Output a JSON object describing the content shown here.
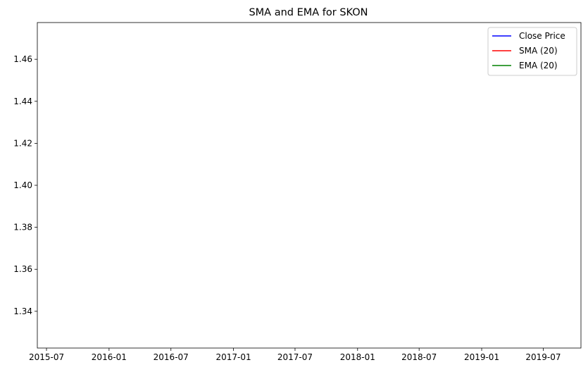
{
  "chart_data": {
    "type": "line",
    "title": "SMA and EMA for SKON",
    "xlabel": "",
    "ylabel": "",
    "x_ticks": [
      "2015-07",
      "2016-01",
      "2016-07",
      "2017-01",
      "2017-07",
      "2018-01",
      "2018-07",
      "2019-01",
      "2019-07"
    ],
    "y_ticks": [
      "1.34",
      "1.36",
      "1.38",
      "1.40",
      "1.42",
      "1.44",
      "1.46"
    ],
    "ylim": [
      1.3225,
      1.4775
    ],
    "xlim": [
      "2015-06-04",
      "2019-10-20"
    ],
    "grid": false,
    "legend_position": "top-right",
    "series": [
      {
        "name": "Close Price",
        "color": "#0000ff",
        "x": [],
        "y": []
      },
      {
        "name": "SMA (20)",
        "color": "#ff0000",
        "x": [],
        "y": []
      },
      {
        "name": "EMA (20)",
        "color": "#008000",
        "x": [],
        "y": []
      }
    ]
  }
}
